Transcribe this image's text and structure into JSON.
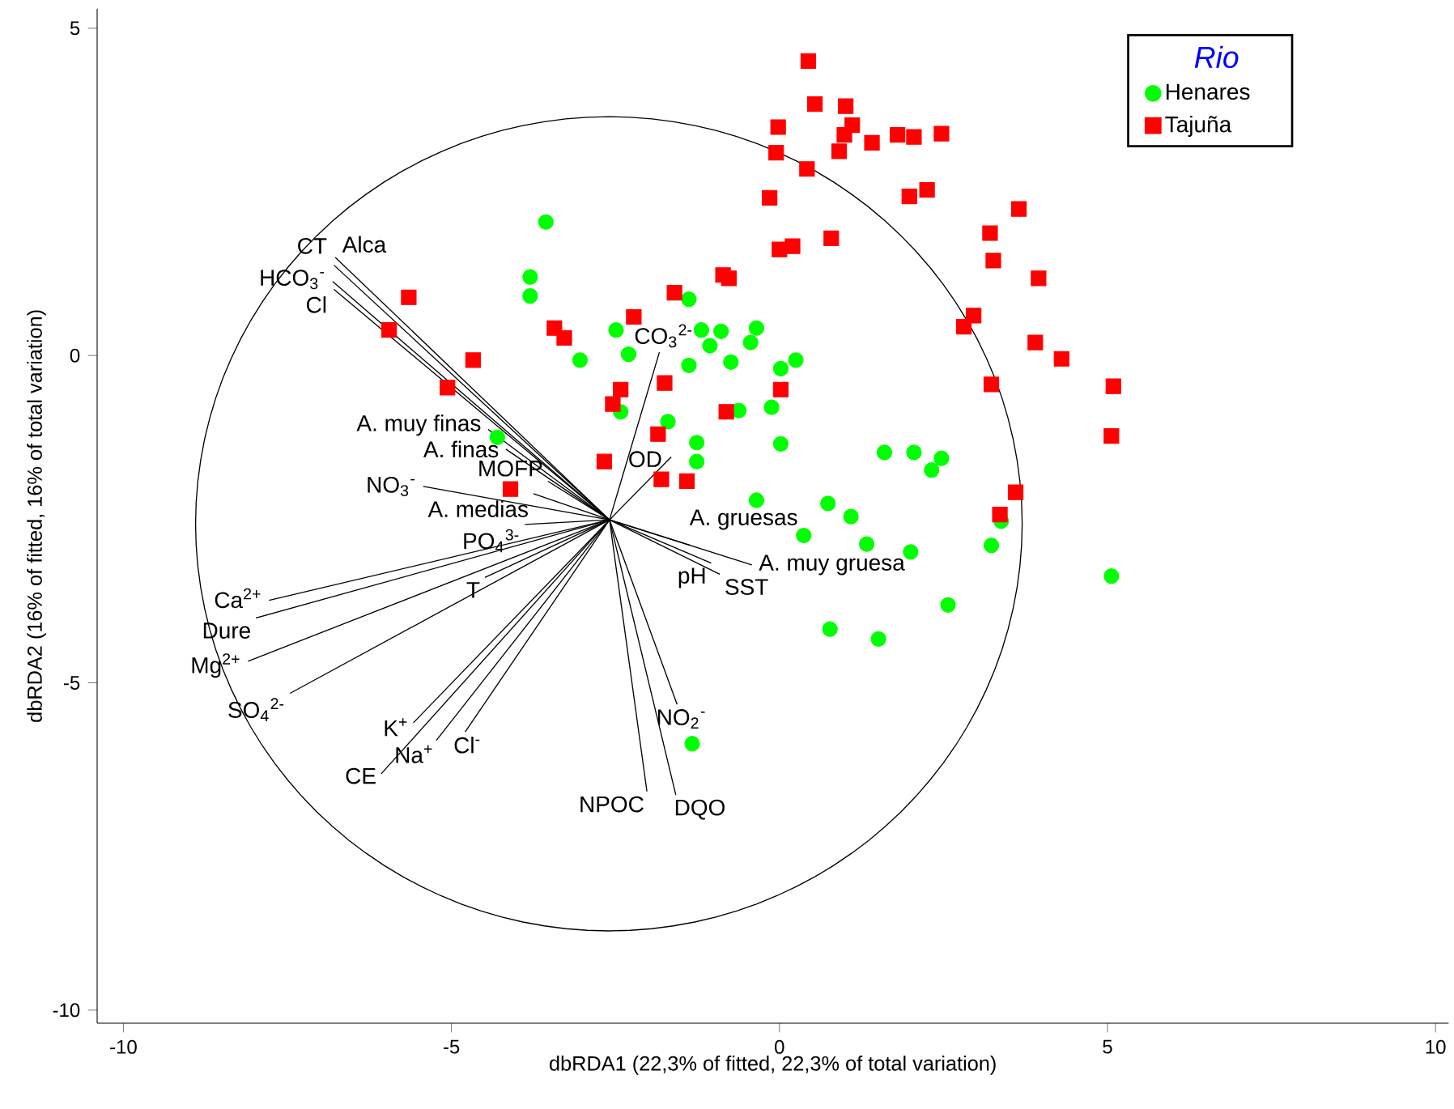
{
  "chart_data": {
    "type": "scatter",
    "xlabel": "dbRDA1 (22,3% of fitted, 22,3% of total variation)",
    "ylabel": "dbRDA2 (16% of fitted, 16% of total variation)",
    "xlim": [
      -10.4,
      10.2
    ],
    "ylim": [
      -10.2,
      5.3
    ],
    "xticks": [
      -10,
      -5,
      0,
      5,
      10
    ],
    "yticks": [
      -10,
      -5,
      0,
      5
    ],
    "legend": "top right",
    "legend_title": "Rio",
    "series": [
      {
        "name": "Henares",
        "color": "#00ff00",
        "marker": "circle",
        "x": [
          -3.56,
          -3.8,
          -3.8,
          -3.04,
          -2.49,
          -2.3,
          -2.42,
          -4.3,
          -1.38,
          -1.19,
          -0.89,
          -0.35,
          -1.06,
          -0.44,
          -1.38,
          -0.74,
          0.02,
          0.25,
          -1.7,
          -0.62,
          -0.12,
          -1.26,
          -1.26,
          0.02,
          -0.35,
          0.74,
          1.09,
          0.37,
          1.33,
          2.0,
          1.6,
          2.05,
          2.47,
          2.32,
          3.23,
          3.38,
          5.06,
          2.57,
          0.77,
          1.51,
          -1.33
        ],
        "values": [
          2.04,
          1.2,
          0.91,
          -0.07,
          0.39,
          0.02,
          -0.86,
          -1.25,
          0.86,
          0.39,
          0.37,
          0.42,
          0.15,
          0.2,
          -0.15,
          -0.1,
          -0.2,
          -0.07,
          -1.01,
          -0.84,
          -0.79,
          -1.33,
          -1.62,
          -1.35,
          -2.21,
          -2.26,
          -2.46,
          -2.75,
          -2.88,
          -3.0,
          -1.48,
          -1.48,
          -1.57,
          -1.75,
          -2.9,
          -2.53,
          -3.37,
          -3.81,
          -4.18,
          -4.33,
          -5.93
        ]
      },
      {
        "name": "Tajuña",
        "color": "#ff0000",
        "marker": "square",
        "x": [
          0.44,
          0.54,
          1.01,
          1.11,
          0.99,
          0.91,
          -0.02,
          -0.05,
          0.42,
          1.41,
          1.8,
          2.05,
          2.47,
          2.25,
          1.98,
          -0.15,
          0.79,
          0.2,
          0.0,
          -0.86,
          -0.77,
          3.65,
          3.21,
          3.26,
          3.95,
          2.96,
          2.81,
          3.9,
          4.3,
          3.23,
          5.09,
          5.06,
          3.6,
          3.36,
          -5.65,
          -5.95,
          -4.67,
          -5.06,
          -3.43,
          -3.28,
          -2.22,
          -2.42,
          -2.54,
          -2.67,
          -4.1,
          -1.6,
          -1.75,
          0.02,
          -0.81,
          -1.85,
          -1.8,
          -1.41
        ],
        "values": [
          4.5,
          3.84,
          3.81,
          3.52,
          3.37,
          3.12,
          3.49,
          3.1,
          2.85,
          3.25,
          3.37,
          3.34,
          3.39,
          2.53,
          2.43,
          2.41,
          1.79,
          1.67,
          1.62,
          1.23,
          1.18,
          2.24,
          1.87,
          1.45,
          1.18,
          0.61,
          0.44,
          0.2,
          -0.05,
          -0.44,
          -0.47,
          -1.23,
          -2.09,
          -2.43,
          0.89,
          0.39,
          -0.07,
          -0.49,
          0.42,
          0.27,
          0.59,
          -0.52,
          -0.74,
          -1.62,
          -2.04,
          0.96,
          -0.42,
          -0.52,
          -0.86,
          -1.2,
          -1.89,
          -1.92
        ]
      },
      {
        "type": "line",
        "name": "CT",
        "color": "#000000",
        "x": [
          -2.59,
          -6.79
        ],
        "values": [
          -2.51,
          1.38
        ]
      },
      {
        "type": "line",
        "name": "Alca",
        "color": "#000000",
        "x": [
          -2.59,
          -6.77
        ],
        "values": [
          -2.51,
          1.5
        ]
      },
      {
        "type": "line",
        "name": "HCO$_{3}$$^{-}$",
        "color": "#000000",
        "x": [
          -2.59,
          -6.81
        ],
        "values": [
          -2.51,
          1.13
        ]
      },
      {
        "type": "line",
        "name": "Cl",
        "color": "#000000",
        "x": [
          -2.59,
          -6.79
        ],
        "values": [
          -2.51,
          1.01
        ]
      },
      {
        "type": "line",
        "name": "CO$_{3}$$^{2-}$",
        "color": "#000000",
        "x": [
          -2.59,
          -1.83
        ],
        "values": [
          -2.51,
          0.05
        ]
      },
      {
        "type": "line",
        "name": "A. muy finas",
        "color": "#000000",
        "x": [
          -2.59,
          -4.44
        ],
        "values": [
          -2.51,
          -1.13
        ]
      },
      {
        "type": "line",
        "name": "A. finas",
        "color": "#000000",
        "x": [
          -2.59,
          -4.17
        ],
        "values": [
          -2.51,
          -1.43
        ]
      },
      {
        "type": "line",
        "name": "OD",
        "color": "#000000",
        "x": [
          -2.59,
          -1.65
        ],
        "values": [
          -2.51,
          -1.55
        ]
      },
      {
        "type": "line",
        "name": "NO$_{3}$$^{-}$",
        "color": "#000000",
        "x": [
          -2.59,
          -5.43
        ],
        "values": [
          -2.51,
          -2.0
        ]
      },
      {
        "type": "line",
        "name": "MOFP",
        "color": "#000000",
        "x": [
          -2.59,
          -3.53
        ],
        "values": [
          -2.51,
          -1.92
        ]
      },
      {
        "type": "line",
        "name": "A. medias",
        "color": "#000000",
        "x": [
          -2.59,
          -3.75
        ],
        "values": [
          -2.51,
          -2.11
        ]
      },
      {
        "type": "line",
        "name": "PO$_{4}$$^{3-}$",
        "color": "#000000",
        "x": [
          -2.59,
          -3.88
        ],
        "values": [
          -2.51,
          -2.58
        ]
      },
      {
        "type": "line",
        "name": "A. gruesas",
        "color": "#000000",
        "x": [
          -2.59,
          -1.36
        ],
        "values": [
          -2.51,
          -2.9
        ]
      },
      {
        "type": "line",
        "name": "A. muy gruesa",
        "color": "#000000",
        "x": [
          -2.59,
          -0.42
        ],
        "values": [
          -2.51,
          -3.2
        ]
      },
      {
        "type": "line",
        "name": "SST",
        "color": "#000000",
        "x": [
          -2.59,
          -0.91
        ],
        "values": [
          -2.51,
          -3.34
        ]
      },
      {
        "type": "line",
        "name": "pH",
        "color": "#000000",
        "x": [
          -2.59,
          -1.04
        ],
        "values": [
          -2.51,
          -3.17
        ]
      },
      {
        "type": "line",
        "name": "Ca$^{2+}$",
        "color": "#000000",
        "x": [
          -2.59,
          -7.78
        ],
        "values": [
          -2.51,
          -3.74
        ]
      },
      {
        "type": "line",
        "name": "Dure",
        "color": "#000000",
        "x": [
          -2.59,
          -7.98
        ],
        "values": [
          -2.51,
          -4.01
        ]
      },
      {
        "type": "line",
        "name": "T",
        "color": "#000000",
        "x": [
          -2.59,
          -4.49
        ],
        "values": [
          -2.51,
          -3.39
        ]
      },
      {
        "type": "line",
        "name": "Mg$^{2+}$",
        "color": "#000000",
        "x": [
          -2.59,
          -8.1
        ],
        "values": [
          -2.51,
          -4.67
        ]
      },
      {
        "type": "line",
        "name": "SO$_{4}$$^{2-}$",
        "color": "#000000",
        "x": [
          -2.59,
          -7.46
        ],
        "values": [
          -2.51,
          -5.16
        ]
      },
      {
        "type": "line",
        "name": "K$^{+}$",
        "color": "#000000",
        "x": [
          -2.59,
          -5.58
        ],
        "values": [
          -2.51,
          -5.61
        ]
      },
      {
        "type": "line",
        "name": "Cl$^{-}$",
        "color": "#000000",
        "x": [
          -2.59,
          -4.79
        ],
        "values": [
          -2.51,
          -5.75
        ]
      },
      {
        "type": "line",
        "name": "Na$^{+}$",
        "color": "#000000",
        "x": [
          -2.59,
          -5.23
        ],
        "values": [
          -2.51,
          -5.88
        ]
      },
      {
        "type": "line",
        "name": "CE",
        "color": "#000000",
        "x": [
          -2.59,
          -6.07
        ],
        "values": [
          -2.51,
          -6.39
        ]
      },
      {
        "type": "line",
        "name": "NO$_{2}$$^{-}$",
        "color": "#000000",
        "x": [
          -2.59,
          -1.56
        ],
        "values": [
          -2.51,
          -5.33
        ]
      },
      {
        "type": "line",
        "name": "NPOC",
        "color": "#000000",
        "x": [
          -2.59,
          -2.02
        ],
        "values": [
          -2.51,
          -6.66
        ]
      },
      {
        "type": "line",
        "name": "DQO",
        "color": "#000000",
        "x": [
          -2.59,
          -1.58
        ],
        "values": [
          -2.51,
          -6.71
        ]
      }
    ]
  }
}
